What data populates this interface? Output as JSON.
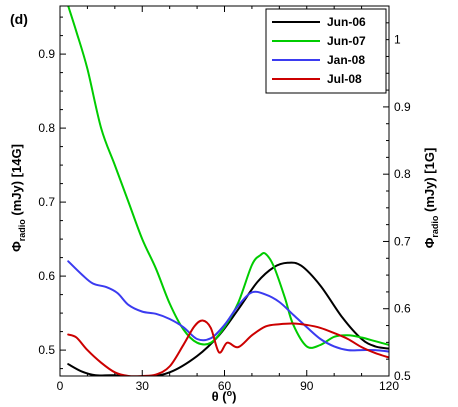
{
  "chart_data": {
    "type": "line",
    "panel_label": "(d)",
    "xlabel": {
      "main": "θ (",
      "sup": "o",
      "tail": ")"
    },
    "ylabel_left": {
      "main": "Φ",
      "sub": "radio",
      "tail": " (mJy) [14G]"
    },
    "ylabel_right": {
      "main": "Φ",
      "sub": "radio",
      "tail": " (mJy) [1G]"
    },
    "xlim": [
      0,
      120
    ],
    "ylim_left": [
      0.465,
      0.965
    ],
    "ylim_right": [
      0.5,
      1.05
    ],
    "x_ticks": [
      0,
      30,
      60,
      90,
      120
    ],
    "y_ticks_left": [
      0.5,
      0.6,
      0.7,
      0.8,
      0.9
    ],
    "y_ticks_right": [
      0.5,
      0.6,
      0.7,
      0.8,
      0.9,
      1
    ],
    "legend_position": "top-right",
    "series": [
      {
        "name": "Jun-06",
        "color": "#000000",
        "axis": "left",
        "x": [
          3,
          8,
          13,
          20,
          30,
          40,
          50,
          58,
          65,
          72,
          78,
          83,
          88,
          95,
          103,
          110,
          115,
          120
        ],
        "y": [
          0.481,
          0.471,
          0.466,
          0.466,
          0.463,
          0.47,
          0.492,
          0.52,
          0.555,
          0.592,
          0.612,
          0.618,
          0.614,
          0.587,
          0.544,
          0.515,
          0.505,
          0.502
        ]
      },
      {
        "name": "Jun-07",
        "color": "#00cc00",
        "axis": "left",
        "x": [
          3,
          6,
          10,
          15,
          20,
          25,
          30,
          35,
          40,
          45,
          50,
          55,
          60,
          65,
          70,
          73,
          75,
          78,
          82,
          85,
          90,
          95,
          100,
          105,
          110,
          115,
          120
        ],
        "y": [
          0.965,
          0.93,
          0.88,
          0.8,
          0.75,
          0.7,
          0.65,
          0.61,
          0.563,
          0.528,
          0.51,
          0.51,
          0.531,
          0.564,
          0.615,
          0.628,
          0.63,
          0.613,
          0.571,
          0.535,
          0.505,
          0.507,
          0.518,
          0.52,
          0.517,
          0.512,
          0.507
        ]
      },
      {
        "name": "Jan-08",
        "color": "#3b3bf0",
        "axis": "left",
        "x": [
          3,
          8,
          12,
          17,
          21,
          25,
          30,
          35,
          40,
          45,
          50,
          55,
          60,
          65,
          70,
          75,
          80,
          85,
          90,
          95,
          100,
          105,
          110,
          115,
          120
        ],
        "y": [
          0.62,
          0.602,
          0.59,
          0.585,
          0.577,
          0.561,
          0.552,
          0.549,
          0.542,
          0.531,
          0.515,
          0.516,
          0.534,
          0.56,
          0.578,
          0.575,
          0.565,
          0.548,
          0.531,
          0.515,
          0.505,
          0.5,
          0.5,
          0.5,
          0.498
        ]
      },
      {
        "name": "Jul-08",
        "color": "#cc0000",
        "axis": "left",
        "x": [
          3,
          6,
          10,
          15,
          20,
          25,
          30,
          35,
          40,
          45,
          49,
          52,
          55,
          58,
          61,
          65,
          70,
          75,
          80,
          85,
          90,
          95,
          100,
          105,
          110,
          115,
          120
        ],
        "y": [
          0.521,
          0.517,
          0.5,
          0.483,
          0.47,
          0.465,
          0.465,
          0.467,
          0.478,
          0.507,
          0.532,
          0.54,
          0.53,
          0.497,
          0.51,
          0.504,
          0.52,
          0.532,
          0.535,
          0.536,
          0.534,
          0.53,
          0.523,
          0.515,
          0.504,
          0.496,
          0.49
        ]
      }
    ]
  }
}
